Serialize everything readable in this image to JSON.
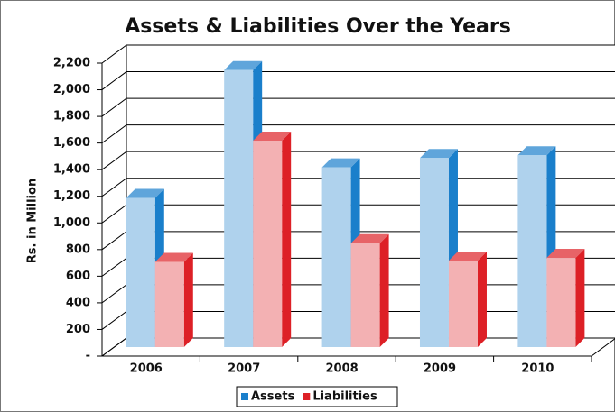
{
  "chart_data": {
    "type": "bar3d",
    "title": "Assets & Liabilities Over the Years",
    "y_label": "Rs. in Million",
    "categories": [
      "2006",
      "2007",
      "2008",
      "2009",
      "2010"
    ],
    "series": [
      {
        "name": "Assets",
        "color": "#1a7fcb",
        "values": [
          1120,
          2080,
          1350,
          1420,
          1440
        ]
      },
      {
        "name": "Liabilities",
        "color": "#dd2026",
        "values": [
          640,
          1550,
          780,
          650,
          670
        ]
      }
    ],
    "ylim": [
      0,
      2200
    ],
    "yticks": [
      {
        "value": 0,
        "label": "-"
      },
      200,
      400,
      600,
      800,
      {
        "value": 1000,
        "label": "1,000"
      },
      {
        "value": 1200,
        "label": "1,200"
      },
      {
        "value": 1400,
        "label": "1,400"
      },
      {
        "value": 1600,
        "label": "1,600"
      },
      {
        "value": 1800,
        "label": "1,800"
      },
      {
        "value": 2000,
        "label": "2,000"
      },
      {
        "value": 2200,
        "label": "2,200"
      }
    ],
    "grid": true,
    "legend": "bottom"
  }
}
